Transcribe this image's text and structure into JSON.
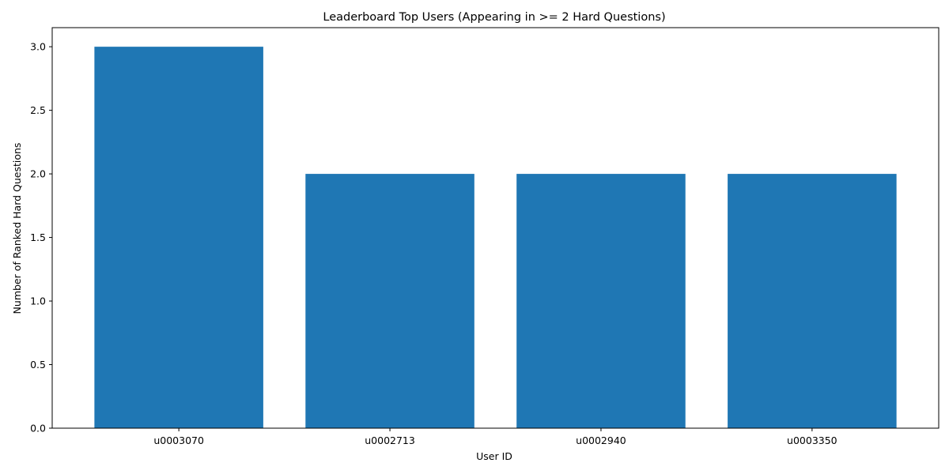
{
  "chart_data": {
    "type": "bar",
    "title": "Leaderboard Top Users (Appearing in >= 2 Hard Questions)",
    "xlabel": "User ID",
    "ylabel": "Number of Ranked Hard Questions",
    "categories": [
      "u0003070",
      "u0002713",
      "u0002940",
      "u0003350"
    ],
    "values": [
      3,
      2,
      2,
      2
    ],
    "ylim": [
      0,
      3.15
    ],
    "yticks": [
      0.0,
      0.5,
      1.0,
      1.5,
      2.0,
      2.5,
      3.0
    ],
    "ytick_labels": [
      "0.0",
      "0.5",
      "1.0",
      "1.5",
      "2.0",
      "2.5",
      "3.0"
    ],
    "grid": false,
    "colors": {
      "bar": "#1f77b4",
      "axis": "#000000",
      "background": "#ffffff"
    }
  }
}
